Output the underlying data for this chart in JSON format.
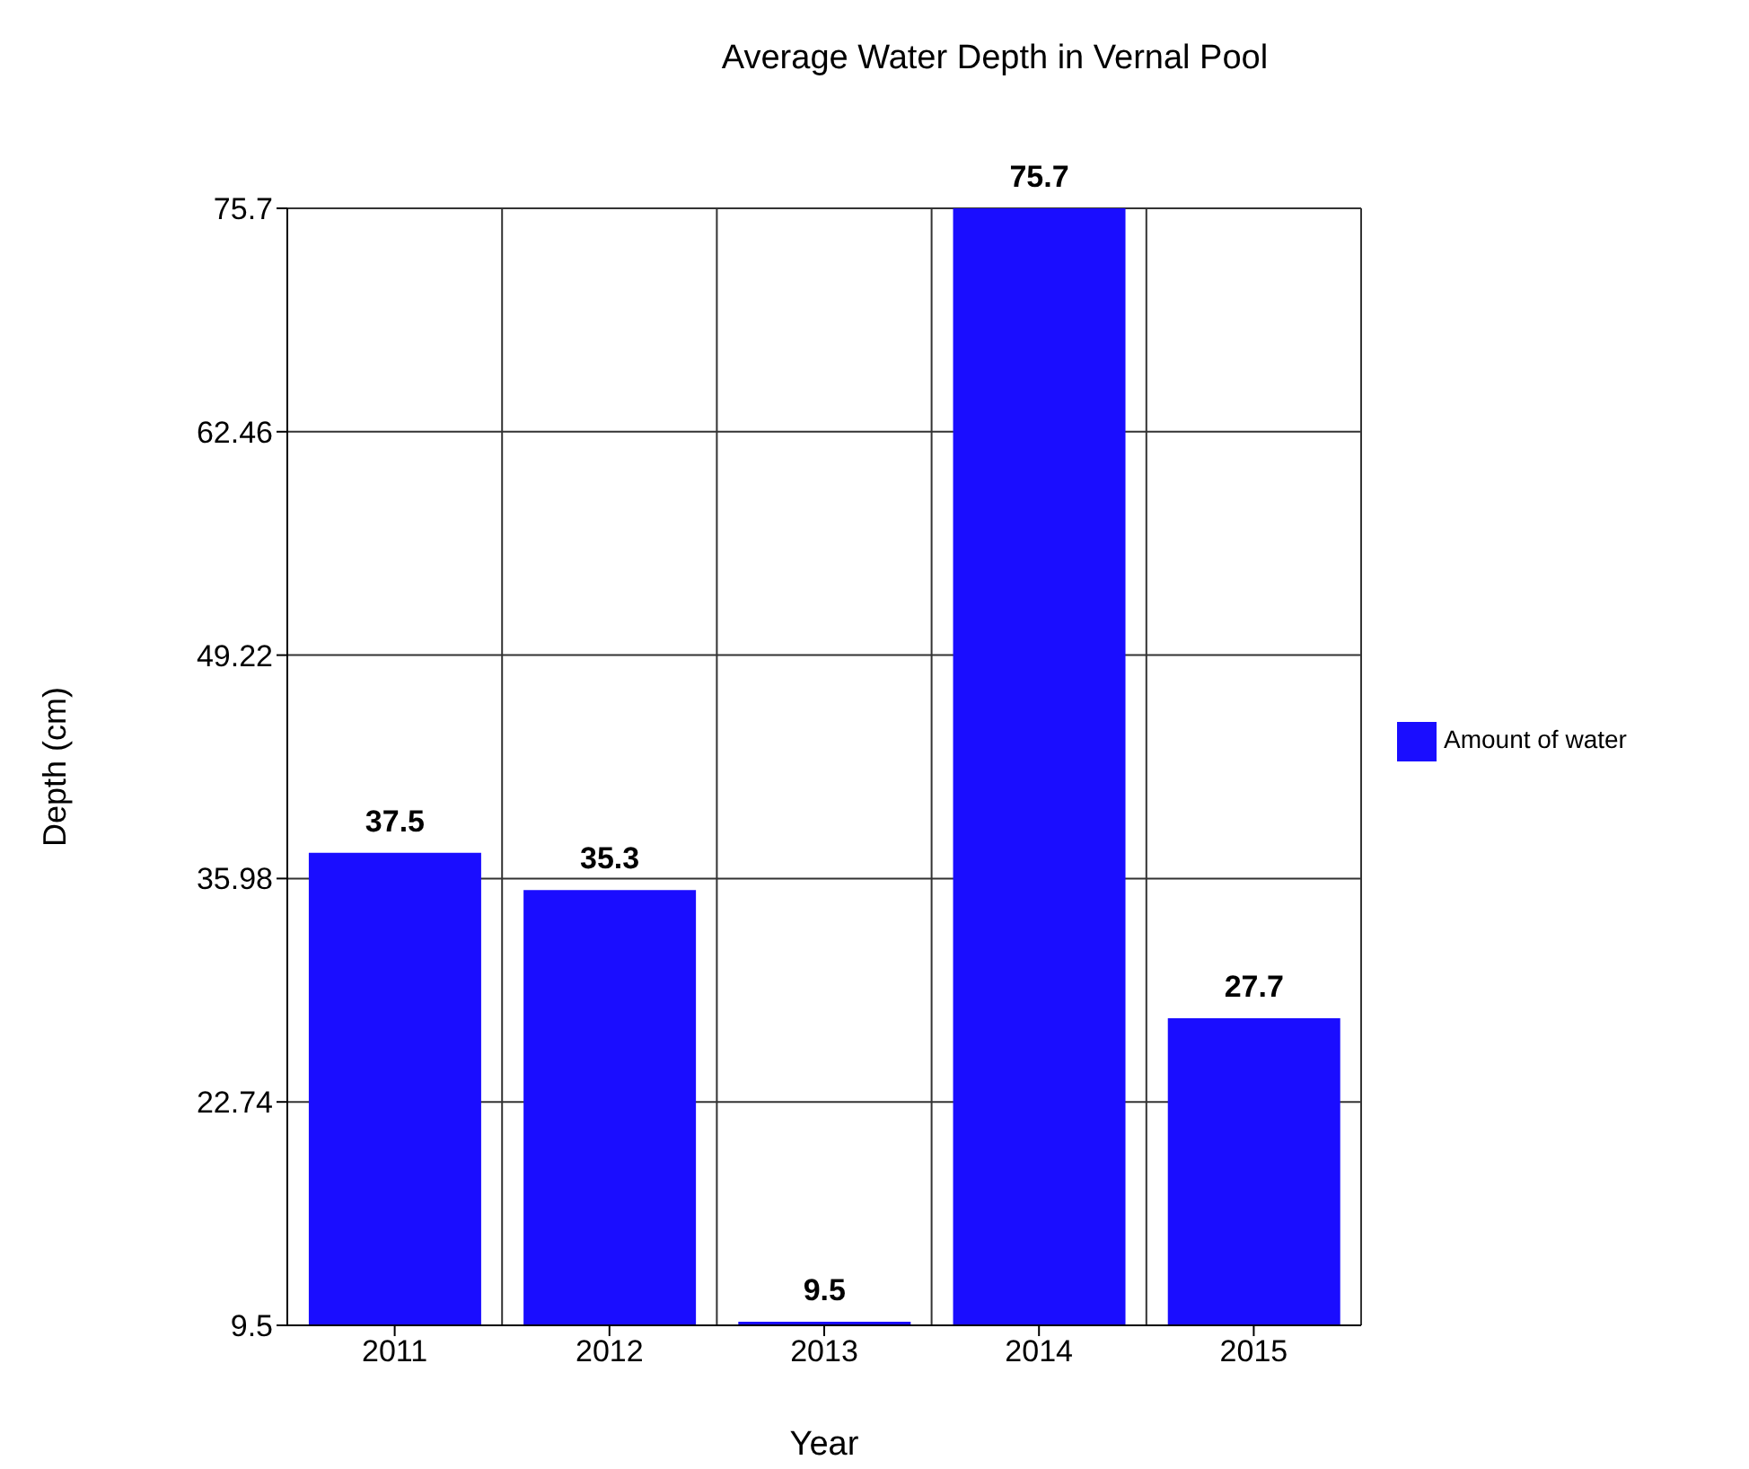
{
  "chart_data": {
    "type": "bar",
    "title": "Average Water Depth in Vernal Pool",
    "xlabel": "Year",
    "ylabel": "Depth (cm)",
    "categories": [
      "2011",
      "2012",
      "2013",
      "2014",
      "2015"
    ],
    "series": [
      {
        "name": "Amount of water",
        "color": "#1a0dff",
        "values": [
          37.5,
          35.3,
          9.5,
          75.7,
          27.7
        ]
      }
    ],
    "ylim": [
      9.5,
      75.7
    ],
    "yticks": [
      9.5,
      22.74,
      35.98,
      49.22,
      62.46,
      75.7
    ],
    "grid": true,
    "legend": "right",
    "data_labels": true
  }
}
